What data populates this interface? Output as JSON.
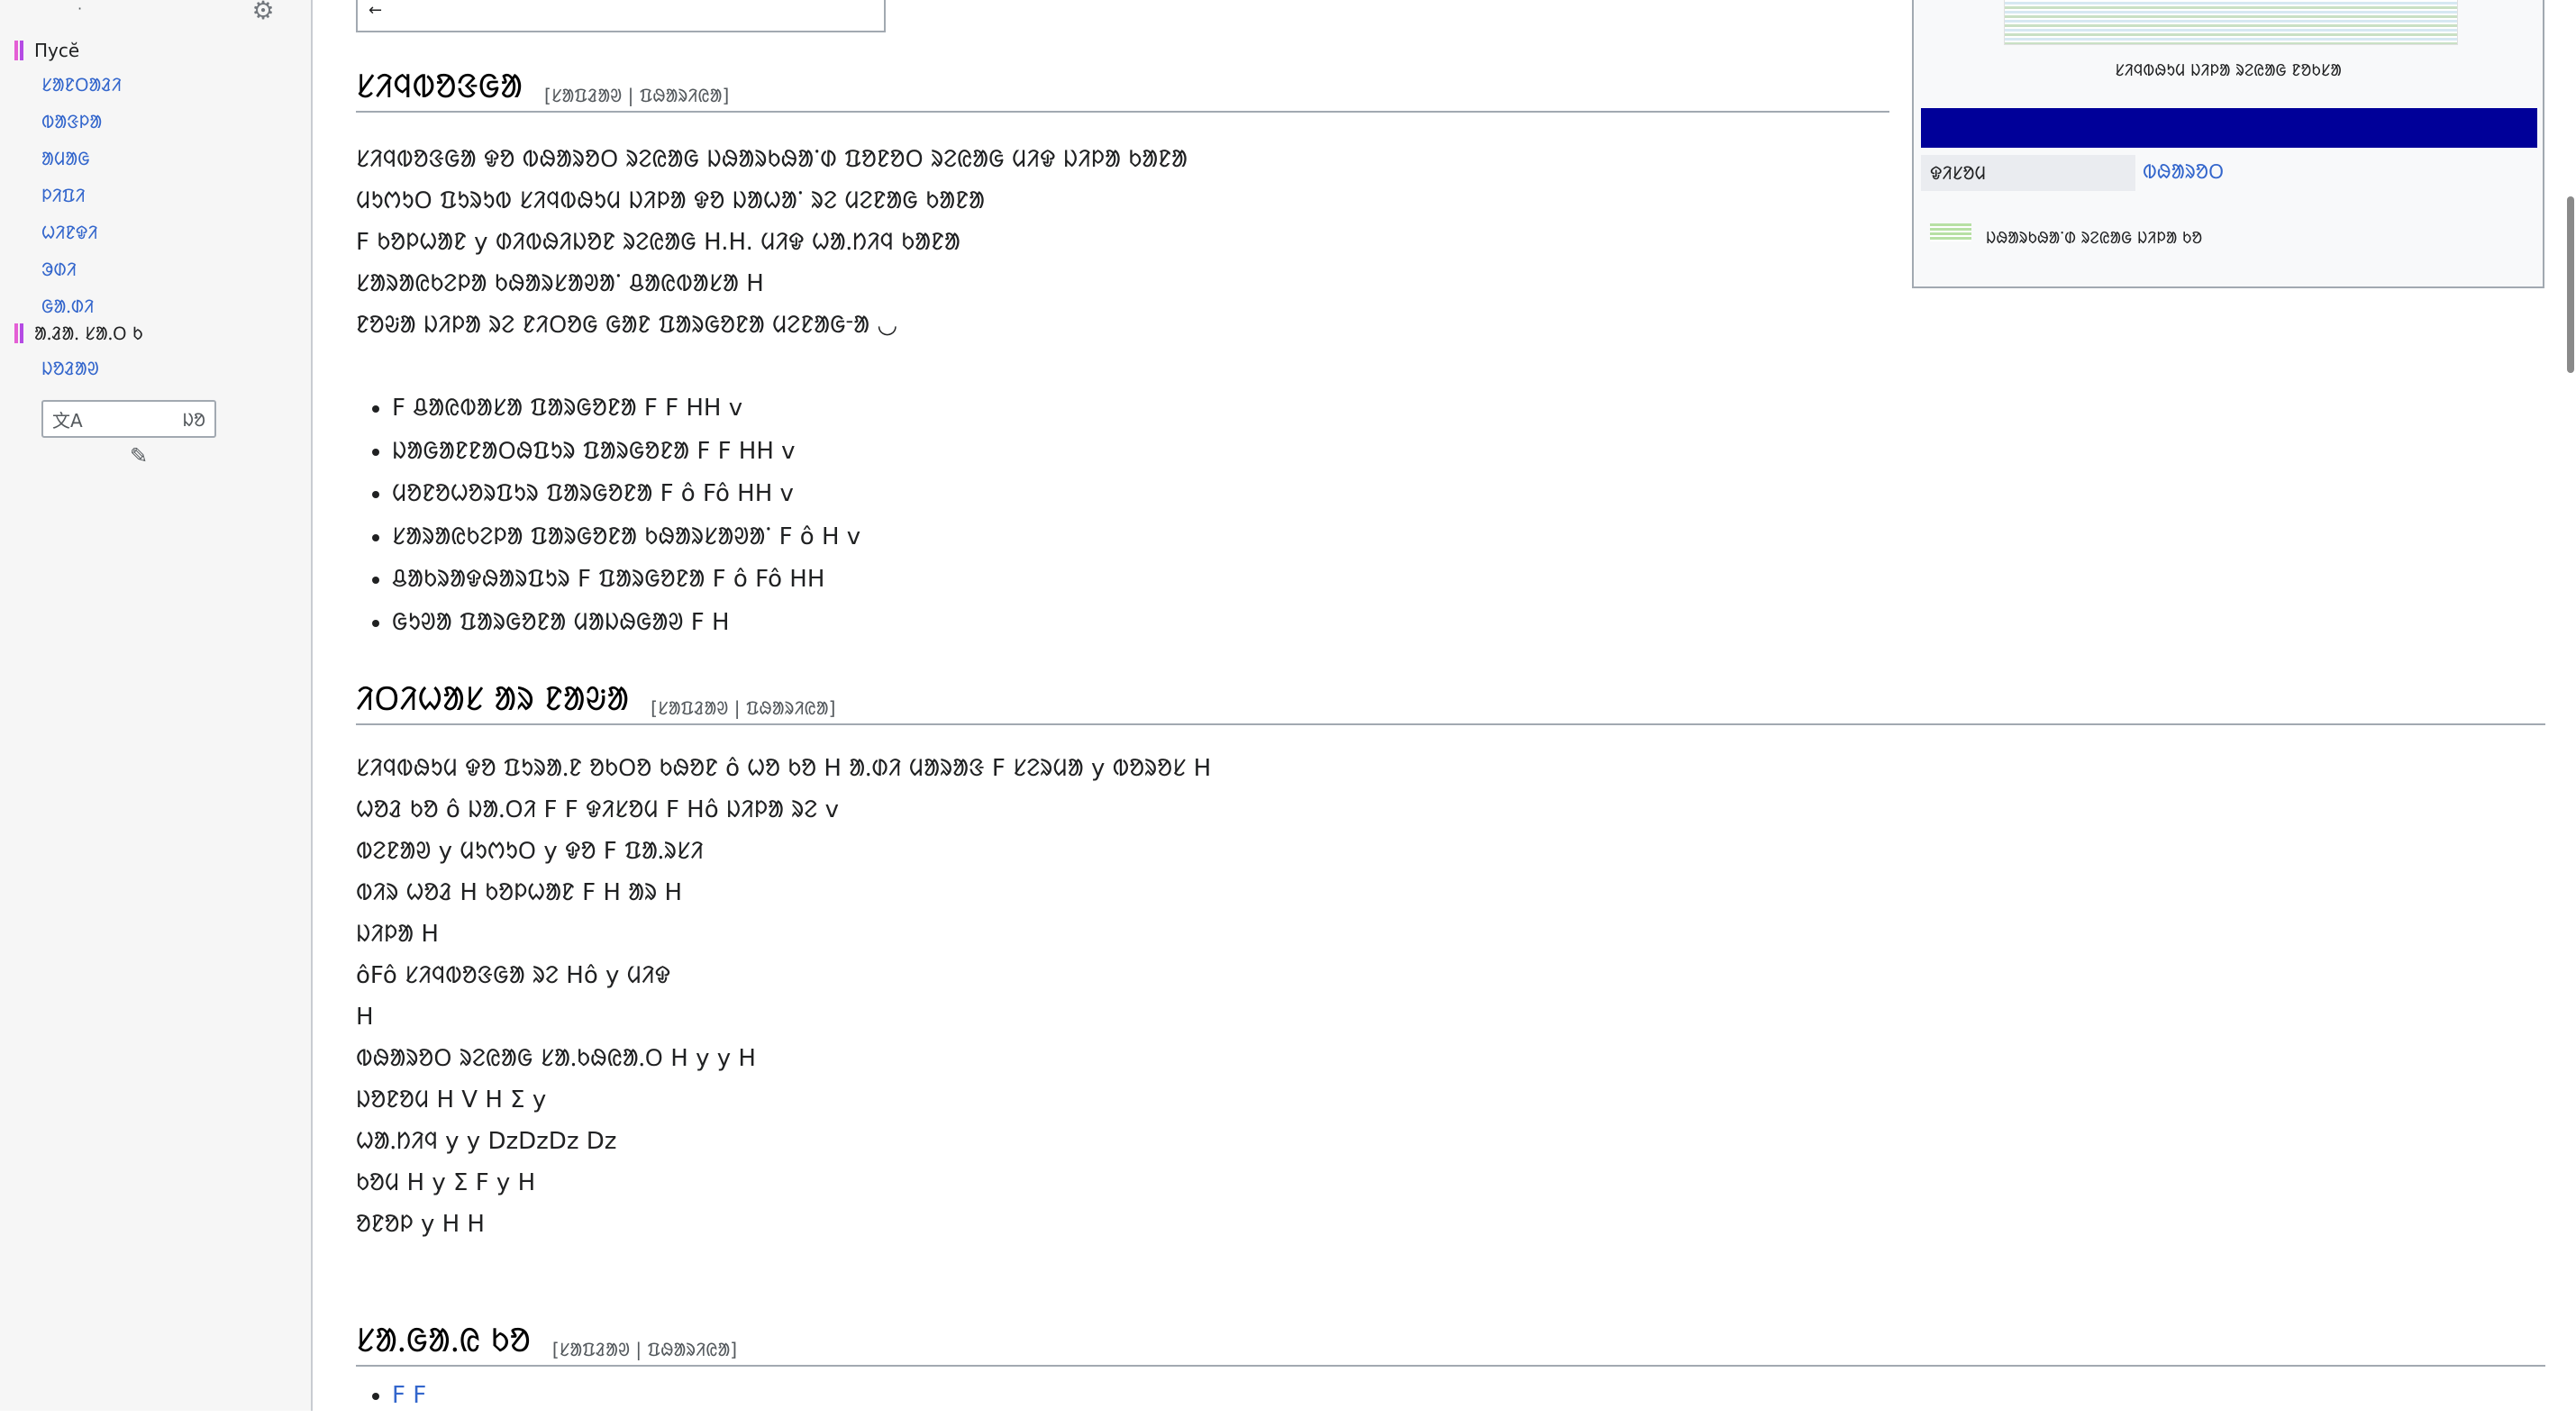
{
  "sidebar": {
    "settings_icon": "gear-icon",
    "dot": "·",
    "section1": {
      "heading": "Пусӗ",
      "items": [
        "ᱥᱟᱱᱛᱟᱲᱤ",
        "ᱵᱟᱝᱞᱟ",
        "ᱟᱢᱟᱜ",
        "ᱞᱤᱯᱤ",
        "ᱦᱤᱱᱫᱤ",
        "ᱳᱰᱤ",
        "ᱜᱟᱹᱰᱤ"
      ]
    },
    "section2": {
      "heading": "ᱟᱹᱲᱟᱹ ᱥᱟᱹᱛ ᱠ",
      "items": [
        "ᱡᱚᱲᱟᱣ"
      ]
    },
    "lang_input_icon": "文A",
    "lang_input_value": "ᱡᱚ",
    "edit_icon": "pencil-icon"
  },
  "main": {
    "top_box_text": "←",
    "sections": [
      {
        "heading": "ᱥᱤᱧᱵᱚᱝᱜᱟ",
        "edit": "[ᱥᱟᱯᱲᱟᱣ | ᱯᱷᱟᱨᱤᱭᱟ]",
        "paragraphs": [
          "ᱥᱤᱧᱵᱚᱝᱜᱟ ᱫᱚ ᱵᱷᱟᱨᱚᱛ ᱨᱮᱭᱟᱜ ᱡᱷᱟᱨᱠᱷᱟᱸᱰ ᱯᱚᱱᱚᱛ ᱨᱮᱭᱟᱜ ᱢᱤᱫ ᱡᱤᱞᱟ ᱠᱟᱱᱟ",
          "ᱢᱩᱬᱩᱛ ᱯᱩᱨᱩᱵ ᱥᱤᱧᱵᱷᱩᱢ ᱡᱤᱞᱟ ᱫᱚ ᱡᱟᱦᱟᱸ ᱨᱮ ᱢᱮᱱᱟᱜ ᱠᱟᱱᱟ",
          "F ᱠᱚᱞᱦᱟᱱ y ᱰᱤᱵᱷᱤᱡᱚᱱ ᱨᱮᱭᱟᱜ H.H. ᱢᱤᱫ ᱦᱟᱹᱴᱤᱧ ᱠᱟᱱᱟ",
          "ᱥᱟᱨᱟᱭᱠᱮᱞᱟ ᱠᱷᱟᱨᱥᱟᱣᱟᱸ ᱪᱟᱭᱵᱟᱥᱟ H",
          "ᱱᱚᱶᱟ ᱡᱤᱞᱟ ᱨᱮ ᱱᱤᱛᱚᱜ ᱜᱟᱱ ᱯᱟᱨᱜᱚᱱᱟ ᱢᱮᱱᱟᱜᱼᱟ ◡"
        ],
        "bullets": [
          "F ᱪᱟᱭᱵᱟᱥᱟ ᱯᱟᱨᱜᱚᱱᱟ F F HH v",
          "ᱡᱟᱜᱟᱱᱱᱟᱛᱷᱯᱩᱨ ᱯᱟᱨᱜᱚᱱᱟ F F HH v",
          "ᱢᱚᱱᱚᱦᱚᱨᱯᱩᱨ ᱯᱟᱨᱜᱚᱱᱟ F ô Fô HH v",
          "ᱥᱟᱨᱟᱭᱠᱮᱞᱟ ᱯᱟᱨᱜᱚᱱᱟ ᱠᱷᱟᱨᱥᱟᱣᱟᱸ F ô H v",
          "ᱪᱟᱠᱨᱟᱫᱷᱟᱨᱯᱩᱨ F ᱯᱟᱨᱜᱚᱱᱟ F ô Fô HH",
          "ᱜᱩᱣᱟ ᱯᱟᱨᱜᱚᱱᱟ ᱢᱟᱡᱷᱜᱟᱣ F H"
        ]
      },
      {
        "heading": "ᱤᱛᱤᱦᱟᱥ ᱟᱨ ᱱᱟᱶᱟ",
        "edit": "[ᱥᱟᱯᱲᱟᱣ | ᱯᱷᱟᱨᱤᱭᱟ]",
        "paragraphs": [
          "ᱥᱤᱧᱵᱷᱩᱢ ᱫᱚ ᱯᱩᱨᱟᱹᱱ ᱚᱠᱛᱚ ᱠᱷᱚᱱ ô ᱦᱚ ᱠᱚ H ᱟᱹᱰᱤ ᱢᱟᱨᱟᱝ F ᱥᱮᱨᱢᱟ y ᱵᱚᱨᱚᱥ H",
          "ᱦᱚᱲ ᱠᱚ ô ᱡᱟᱹᱛᱤ F F ᱫᱤᱥᱚᱢ F Hô ᱡᱤᱞᱟ ᱨᱮ v",
          "ᱵᱮᱱᱟᱣ y ᱢᱩᱬᱩᱛ y ᱫᱚ F ᱯᱟᱹᱨᱥᱤ",
          "ᱵᱤᱨ ᱦᱚᱲ H ᱠᱚᱞᱦᱟᱱ F H ᱟᱨ H",
          "ᱡᱤᱞᱟ H",
          "ôFô ᱥᱤᱧᱵᱚᱝᱜᱟ ᱨᱮ Hô y ᱢᱤᱫ",
          "H",
          "ᱵᱷᱟᱨᱚᱛ ᱨᱮᱭᱟᱜ ᱥᱟᱹᱠᱷᱭᱟᱹᱛ H y y H",
          "ᱡᱚᱱᱚᱢ H V H Σ y",
          "ᱦᱟᱹᱴᱤᱧ y y DzDzDz Dz",
          "ᱠᱚᱢ H y Σ F y H",
          "ᱚᱱᱚᱞ y H H"
        ]
      },
      {
        "heading": "ᱥᱟᱹᱜᱟᱹᱭ ᱠᱚ",
        "edit": "[ᱥᱟᱯᱲᱟᱣ | ᱯᱷᱟᱨᱤᱭᱟ]",
        "bullets": [
          "F F"
        ]
      }
    ]
  },
  "infobox": {
    "map_caption": "ᱥᱤᱧᱵᱷᱩᱢ ᱡᱤᱞᱟ ᱨᱮᱭᱟᱜ ᱱᱚᱠᱥᱟ",
    "band_color": "#000099",
    "label": "ᱫᱤᱥᱚᱢ",
    "value": "ᱵᱷᱟᱨᱚᱛ",
    "footer": "ᱡᱷᱟᱨᱠᱷᱟᱸᱰ ᱨᱮᱭᱟᱜ ᱡᱤᱞᱟ ᱠᱚ"
  },
  "colors": {
    "link": "#3366cc",
    "sidebar_bg": "#f6f6f6",
    "border": "#a2a9b1"
  }
}
